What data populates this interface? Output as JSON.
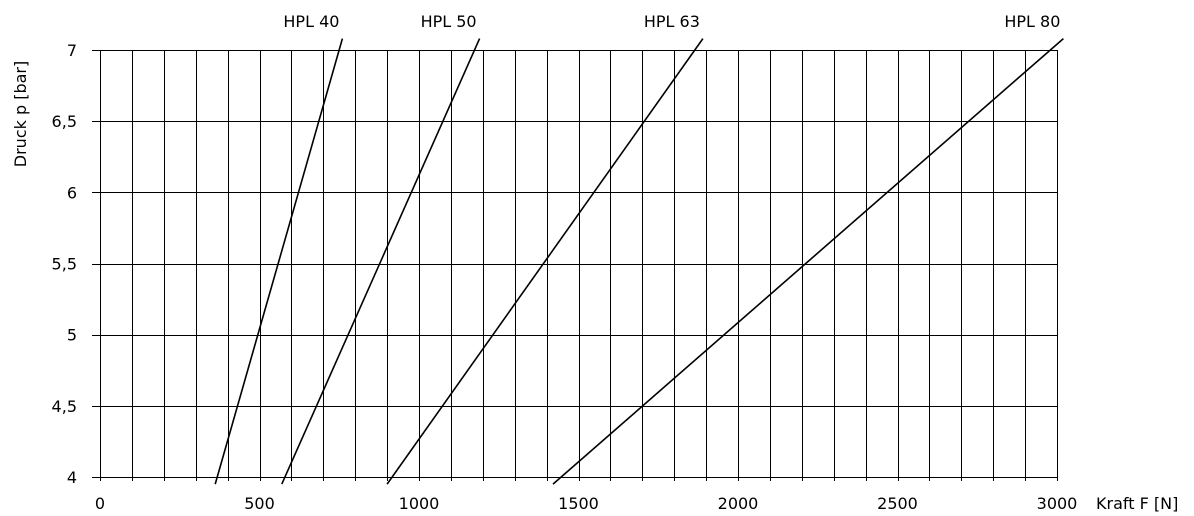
{
  "chart_data": {
    "type": "line",
    "title": "",
    "xlabel": "Kraft F [N]",
    "ylabel": "Druck p [bar]",
    "xlim": [
      0,
      3000
    ],
    "ylim": [
      4,
      7
    ],
    "x_ticks": [
      {
        "value": 0,
        "label": "0"
      },
      {
        "value": 500,
        "label": "500"
      },
      {
        "value": 1000,
        "label": "1000"
      },
      {
        "value": 1500,
        "label": "1500"
      },
      {
        "value": 2000,
        "label": "2000"
      },
      {
        "value": 2500,
        "label": "2500"
      },
      {
        "value": 3000,
        "label": "3000"
      }
    ],
    "y_ticks": [
      {
        "value": 4,
        "label": "4"
      },
      {
        "value": 4.5,
        "label": "4,5"
      },
      {
        "value": 5,
        "label": "5"
      },
      {
        "value": 5.5,
        "label": "5,5"
      },
      {
        "value": 6,
        "label": "6"
      },
      {
        "value": 6.5,
        "label": "6,5"
      },
      {
        "value": 7,
        "label": "7"
      }
    ],
    "x_grid_step": 100,
    "y_grid_step": 0.5,
    "grid": true,
    "legend": "none",
    "series": [
      {
        "name": "HPL 40",
        "points": [
          [
            361,
            3.95
          ],
          [
            760,
            7.08
          ]
        ]
      },
      {
        "name": "HPL 50",
        "points": [
          [
            570,
            3.95
          ],
          [
            1190,
            7.08
          ]
        ]
      },
      {
        "name": "HPL 63",
        "points": [
          [
            900,
            3.95
          ],
          [
            1890,
            7.08
          ]
        ]
      },
      {
        "name": "HPL 80",
        "points": [
          [
            1420,
            3.95
          ],
          [
            3020,
            7.08
          ]
        ]
      }
    ],
    "line_color": "#000000"
  }
}
